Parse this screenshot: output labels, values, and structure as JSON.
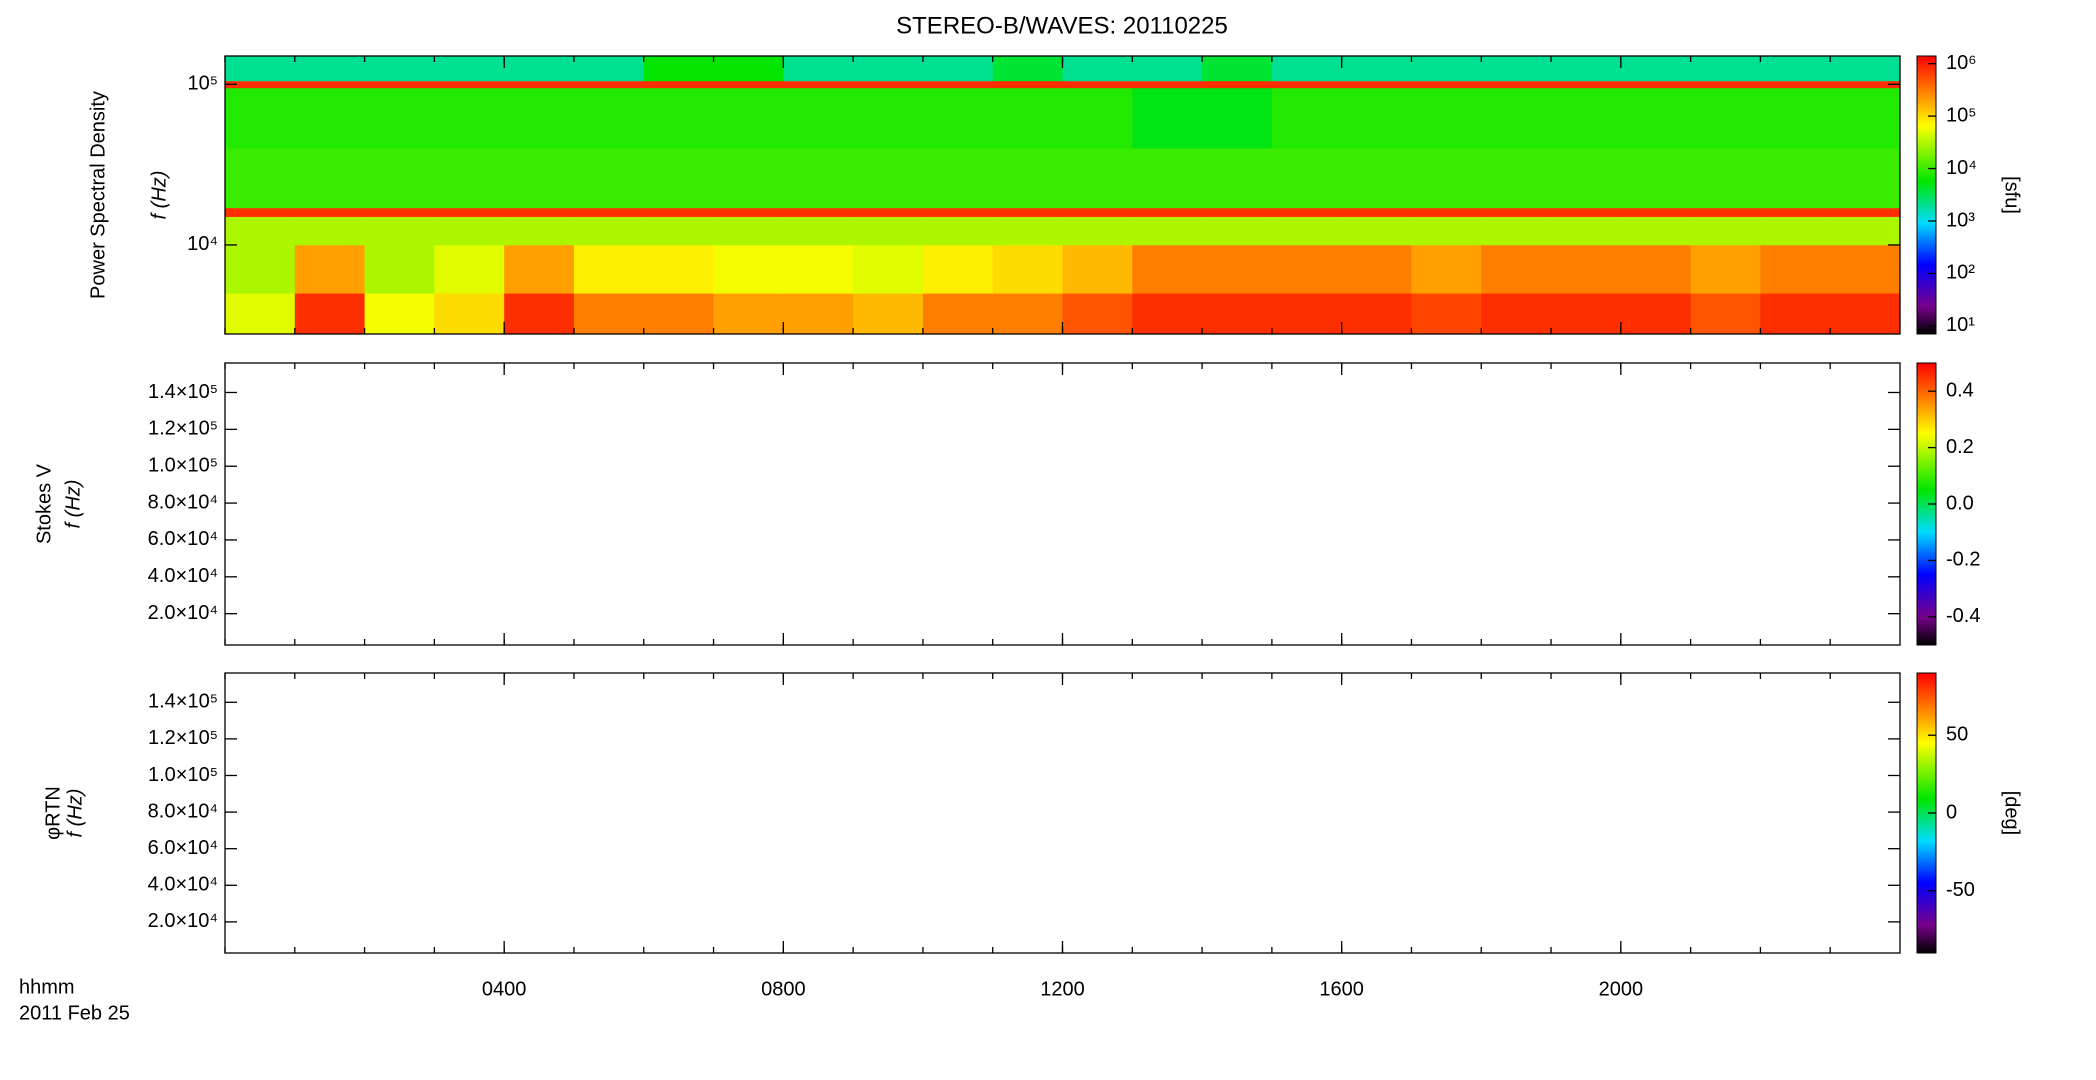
{
  "chart_data": [
    {
      "type": "heatmap",
      "title": "STEREO-B/WAVES: 20110225",
      "ylabel": "Power Spectral Density",
      "ylabel2": "f (Hz)",
      "zlabel": "[sfu]",
      "xlim": [
        0,
        24
      ],
      "xticks": [
        {
          "value": 4,
          "label": "0400"
        },
        {
          "value": 8,
          "label": "0800"
        },
        {
          "value": 12,
          "label": "1200"
        },
        {
          "value": 16,
          "label": "1600"
        },
        {
          "value": 20,
          "label": "2000"
        }
      ],
      "ylog": true,
      "ylim": [
        2790,
        150000
      ],
      "yticks": [
        {
          "value": 10000,
          "label": "10⁴"
        },
        {
          "value": 100000,
          "label": "10⁵"
        }
      ],
      "zlog": true,
      "zlim": [
        7,
        1400000
      ],
      "colormap": "rainbow",
      "zticks": [
        {
          "value": 10,
          "label": "10¹"
        },
        {
          "value": 100,
          "label": "10²"
        },
        {
          "value": 1000,
          "label": "10³"
        },
        {
          "value": 10000,
          "label": "10⁴"
        },
        {
          "value": 100000,
          "label": "10⁵"
        },
        {
          "value": 1000000,
          "label": "10⁶"
        }
      ],
      "x_edges": [
        0,
        1,
        2,
        3,
        4,
        5,
        6,
        7,
        8,
        9,
        10,
        11,
        12,
        13,
        14,
        15,
        16,
        17,
        18,
        19,
        20,
        21,
        22,
        23,
        24
      ],
      "y_edges": [
        2790,
        5000,
        10000,
        15000,
        17000,
        40000,
        95000,
        105000,
        150000
      ],
      "z": [
        [
          50000,
          800000,
          60000,
          100000,
          800000,
          300000,
          300000,
          200000,
          200000,
          150000,
          300000,
          300000,
          500000,
          800000,
          800000,
          800000,
          800000,
          600000,
          800000,
          800000,
          800000,
          500000,
          800000,
          800000
        ],
        [
          30000,
          200000,
          30000,
          50000,
          200000,
          80000,
          80000,
          60000,
          60000,
          50000,
          80000,
          100000,
          150000,
          300000,
          300000,
          300000,
          300000,
          200000,
          300000,
          300000,
          300000,
          200000,
          300000,
          300000
        ],
        [
          30000,
          30000,
          30000,
          30000,
          30000,
          30000,
          30000,
          30000,
          30000,
          30000,
          30000,
          30000,
          30000,
          30000,
          30000,
          30000,
          30000,
          30000,
          30000,
          30000,
          30000,
          30000,
          30000,
          30000
        ],
        [
          800000,
          800000,
          800000,
          800000,
          800000,
          800000,
          800000,
          800000,
          800000,
          800000,
          800000,
          800000,
          800000,
          800000,
          800000,
          800000,
          800000,
          800000,
          800000,
          800000,
          800000,
          800000,
          800000,
          800000
        ],
        [
          10000,
          10000,
          10000,
          10000,
          10000,
          10000,
          10000,
          10000,
          10000,
          10000,
          10000,
          10000,
          10000,
          10000,
          10000,
          10000,
          10000,
          10000,
          10000,
          10000,
          10000,
          10000,
          10000,
          10000
        ],
        [
          8000,
          8000,
          8000,
          8000,
          8000,
          8000,
          8000,
          8000,
          8000,
          8000,
          8000,
          8000,
          8000,
          5000,
          5000,
          8000,
          8000,
          8000,
          8000,
          8000,
          8000,
          8000,
          8000,
          8000
        ],
        [
          800000,
          800000,
          800000,
          800000,
          800000,
          800000,
          800000,
          800000,
          800000,
          800000,
          800000,
          800000,
          800000,
          800000,
          800000,
          800000,
          800000,
          800000,
          800000,
          800000,
          800000,
          800000,
          800000,
          800000
        ],
        [
          2000,
          2000,
          2000,
          2000,
          2000,
          2000,
          6000,
          6000,
          2000,
          2000,
          2000,
          4000,
          2000,
          2000,
          4000,
          2000,
          2000,
          2000,
          2000,
          2000,
          2000,
          2000,
          2000,
          2000
        ]
      ]
    },
    {
      "type": "heatmap",
      "ylabel": "Stokes V",
      "ylabel2": "f (Hz)",
      "xlim": [
        0,
        24
      ],
      "xticks": [
        {
          "value": 4,
          "label": "0400"
        },
        {
          "value": 8,
          "label": "0800"
        },
        {
          "value": 12,
          "label": "1200"
        },
        {
          "value": 16,
          "label": "1600"
        },
        {
          "value": 20,
          "label": "2000"
        }
      ],
      "ylim": [
        3000,
        156000
      ],
      "yticks": [
        {
          "value": 20000,
          "label": "2.0×10⁴"
        },
        {
          "value": 40000,
          "label": "4.0×10⁴"
        },
        {
          "value": 60000,
          "label": "6.0×10⁴"
        },
        {
          "value": 80000,
          "label": "8.0×10⁴"
        },
        {
          "value": 100000,
          "label": "1.0×10⁵"
        },
        {
          "value": 120000,
          "label": "1.2×10⁵"
        },
        {
          "value": 140000,
          "label": "1.4×10⁵"
        }
      ],
      "zlim": [
        -0.5,
        0.5
      ],
      "colormap": "rainbow",
      "zticks": [
        -0.4,
        -0.2,
        {
          "value": 0,
          "label": "0.0"
        },
        0.2,
        0.4
      ]
    },
    {
      "type": "heatmap",
      "ylabel": "φRTN",
      "ylabel2": "f (Hz)",
      "zlabel": "[deg]",
      "xlabel": "hhmm",
      "date": "2011 Feb 25",
      "xlim": [
        0,
        24
      ],
      "xticks": [
        {
          "value": 4,
          "label": "0400"
        },
        {
          "value": 8,
          "label": "0800"
        },
        {
          "value": 12,
          "label": "1200"
        },
        {
          "value": 16,
          "label": "1600"
        },
        {
          "value": 20,
          "label": "2000"
        }
      ],
      "ylim": [
        3000,
        156000
      ],
      "yticks": [
        {
          "value": 20000,
          "label": "2.0×10⁴"
        },
        {
          "value": 40000,
          "label": "4.0×10⁴"
        },
        {
          "value": 60000,
          "label": "6.0×10⁴"
        },
        {
          "value": 80000,
          "label": "8.0×10⁴"
        },
        {
          "value": 100000,
          "label": "1.0×10⁵"
        },
        {
          "value": 120000,
          "label": "1.2×10⁵"
        },
        {
          "value": 140000,
          "label": "1.4×10⁵"
        }
      ],
      "zlim": [
        -90,
        90
      ],
      "colormap": "rainbow",
      "zticks": [
        -50,
        0,
        50
      ]
    }
  ]
}
